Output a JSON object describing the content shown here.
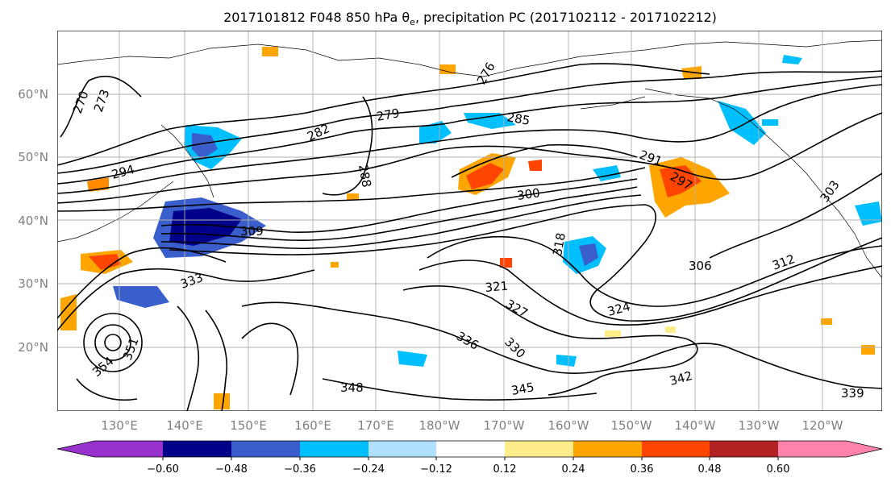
{
  "title": {
    "prefix": "2017101812 F048 850 hPa θ",
    "subscript": "e",
    "suffix": ", precipitation PC (2017102112 - 2017102212)"
  },
  "map": {
    "lat_labels": [
      "60°N",
      "50°N",
      "40°N",
      "30°N",
      "20°N"
    ],
    "lon_labels": [
      "130°E",
      "140°E",
      "150°E",
      "160°E",
      "170°E",
      "180°W",
      "170°W",
      "160°W",
      "150°W",
      "140°W",
      "130°W",
      "120°W"
    ],
    "contour_labels": [
      "270",
      "273",
      "279",
      "282",
      "285",
      "288",
      "291",
      "294",
      "297",
      "300",
      "303",
      "306",
      "309",
      "312",
      "318",
      "321",
      "324",
      "327",
      "330",
      "333",
      "336",
      "339",
      "342",
      "345",
      "348",
      "351",
      "354",
      "276"
    ]
  },
  "colorbar": {
    "ticks": [
      "−0.60",
      "−0.48",
      "−0.36",
      "−0.24",
      "−0.12",
      "0.12",
      "0.24",
      "0.36",
      "0.48",
      "0.60"
    ],
    "colors": [
      "#9932cc",
      "#00008b",
      "#3a5fcd",
      "#00bfff",
      "#b0e2ff",
      "#ffffff",
      "#ffec8b",
      "#ffa500",
      "#ff4500",
      "#b22222",
      "#ff82ab"
    ]
  },
  "chart_data": {
    "type": "map",
    "field": "850 hPa equivalent potential temperature contours with precipitation PC shading",
    "lat_range": [
      10,
      70
    ],
    "lon_range": [
      120,
      255
    ],
    "colorbar_levels": [
      -0.6,
      -0.48,
      -0.36,
      -0.24,
      -0.12,
      0.12,
      0.24,
      0.36,
      0.48,
      0.6
    ]
  }
}
